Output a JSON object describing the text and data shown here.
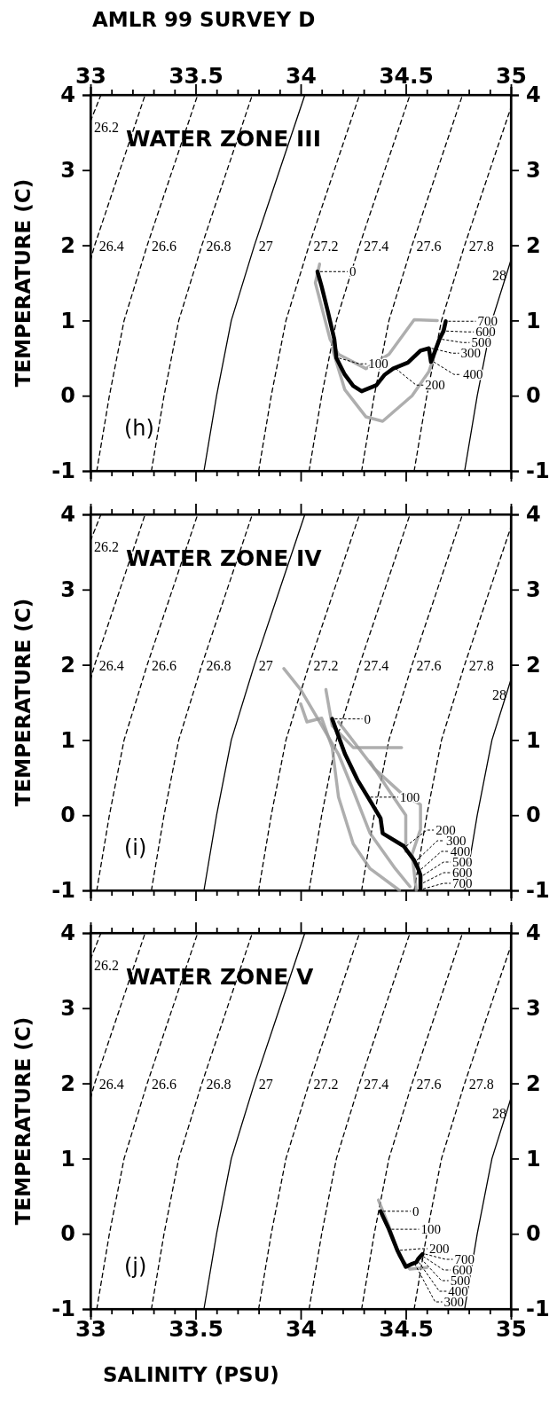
{
  "chart_data": [
    {
      "type": "line",
      "title": "AMLR 99  SURVEY D",
      "subtitle": "WATER ZONE III",
      "ylabel": "TEMPERATURE (C)",
      "tick_labels": "y",
      "xlim": [
        33,
        35
      ],
      "xticks": [
        33,
        {
          "value": 33.1,
          "label": null
        },
        {
          "value": 33.2,
          "label": null
        },
        {
          "value": 33.3,
          "label": null
        },
        {
          "value": 33.4,
          "label": null
        },
        33.5,
        {
          "value": 33.6,
          "label": null
        },
        {
          "value": 33.7,
          "label": null
        },
        {
          "value": 33.8,
          "label": null
        },
        {
          "value": 33.9,
          "label": null
        },
        34,
        {
          "value": 34.1,
          "label": null
        },
        {
          "value": 34.2,
          "label": null
        },
        {
          "value": 34.3,
          "label": null
        },
        {
          "value": 34.4,
          "label": null
        },
        34.5,
        {
          "value": 34.6,
          "label": null
        },
        {
          "value": 34.7,
          "label": null
        },
        {
          "value": 34.8,
          "label": null
        },
        {
          "value": 34.9,
          "label": null
        },
        35
      ],
      "x2lim": [
        33,
        35
      ],
      "x2ticks": [
        33,
        {
          "value": 33.1,
          "label": null
        },
        {
          "value": 33.2,
          "label": null
        },
        {
          "value": 33.3,
          "label": null
        },
        {
          "value": 33.4,
          "label": null
        },
        33.5,
        {
          "value": 33.6,
          "label": null
        },
        {
          "value": 33.7,
          "label": null
        },
        {
          "value": 33.8,
          "label": null
        },
        {
          "value": 33.9,
          "label": null
        },
        34,
        {
          "value": 34.1,
          "label": null
        },
        {
          "value": 34.2,
          "label": null
        },
        {
          "value": 34.3,
          "label": null
        },
        {
          "value": 34.4,
          "label": null
        },
        34.5,
        {
          "value": 34.6,
          "label": null
        },
        {
          "value": 34.7,
          "label": null
        },
        {
          "value": 34.8,
          "label": null
        },
        {
          "value": 34.9,
          "label": null
        },
        35
      ],
      "ylim": [
        -1,
        4
      ],
      "yticks": [
        -1,
        0,
        1,
        2,
        3,
        4
      ],
      "y2lim": [
        -1,
        4
      ],
      "y2ticks": [
        -1,
        0,
        1,
        2,
        3,
        4
      ],
      "series": [
        {
          "name": "26.2",
          "color": "#000000",
          "line_style": "dashed",
          "x": [
            33.0,
            33.05
          ],
          "values": [
            3.65,
            4
          ]
        },
        {
          "name": "26.4",
          "color": "#000000",
          "line_style": "dashed",
          "x": [
            33.0,
            33.02,
            33.14,
            33.26
          ],
          "values": [
            1.8,
            2,
            3,
            4
          ]
        },
        {
          "name": "26.6",
          "color": "#000000",
          "line_style": "dashed",
          "x": [
            33.03,
            33.09,
            33.16,
            33.27,
            33.39,
            33.51
          ],
          "values": [
            -1,
            0,
            1,
            2,
            3,
            4
          ]
        },
        {
          "name": "26.8",
          "color": "#000000",
          "line_style": "dashed",
          "x": [
            33.29,
            33.35,
            33.42,
            33.53,
            33.65,
            33.77
          ],
          "values": [
            -1,
            0,
            1,
            2,
            3,
            4
          ]
        },
        {
          "name": "27",
          "color": "#000000",
          "line_style": "solid",
          "x": [
            33.54,
            33.6,
            33.67,
            33.78,
            33.9,
            34.02
          ],
          "values": [
            -1,
            0,
            1,
            2,
            3,
            4
          ]
        },
        {
          "name": "27.2",
          "color": "#000000",
          "line_style": "dashed",
          "x": [
            33.8,
            33.86,
            33.93,
            34.04,
            34.16,
            34.28
          ],
          "values": [
            -1,
            0,
            1,
            2,
            3,
            4
          ]
        },
        {
          "name": "27.4",
          "color": "#000000",
          "line_style": "dashed",
          "x": [
            34.04,
            34.1,
            34.17,
            34.28,
            34.4,
            34.52
          ],
          "values": [
            -1,
            0,
            1,
            2,
            3,
            4
          ]
        },
        {
          "name": "27.6",
          "color": "#000000",
          "line_style": "dashed",
          "x": [
            34.29,
            34.35,
            34.42,
            34.53,
            34.65,
            34.77
          ],
          "values": [
            -1,
            0,
            1,
            2,
            3,
            4
          ]
        },
        {
          "name": "27.8",
          "color": "#000000",
          "line_style": "dashed",
          "x": [
            34.54,
            34.6,
            34.67,
            34.78,
            34.9,
            35.0
          ],
          "values": [
            -1,
            0,
            1,
            2,
            3,
            3.83
          ]
        },
        {
          "name": "28",
          "color": "#000000",
          "line_style": "solid",
          "x": [
            34.78,
            34.84,
            34.91,
            35.0
          ],
          "values": [
            -1,
            0,
            1,
            1.8
          ]
        },
        {
          "color": "#9a9a9a",
          "x": [
            34.09,
            34.07,
            34.14,
            34.18,
            34.31,
            34.42,
            34.54,
            34.65
          ],
          "values": [
            1.75,
            1.5,
            0.75,
            0.55,
            0.36,
            0.55,
            1.01,
            1.0
          ]
        },
        {
          "color": "#9a9a9a",
          "x": [
            34.15,
            34.21,
            34.31,
            34.39,
            34.53,
            34.61,
            34.69
          ],
          "values": [
            0.63,
            0.08,
            -0.28,
            -0.34,
            0.0,
            0.32,
            0.99
          ]
        },
        {
          "color": "#000000",
          "x": [
            34.08,
            34.1,
            34.13,
            34.16,
            34.17,
            34.21,
            34.25,
            34.29,
            34.36,
            34.4,
            34.44,
            34.51,
            34.57,
            34.61,
            34.62,
            34.64,
            34.66,
            34.68,
            34.69
          ],
          "values": [
            1.65,
            1.45,
            1.11,
            0.75,
            0.5,
            0.28,
            0.13,
            0.06,
            0.14,
            0.28,
            0.36,
            0.44,
            0.6,
            0.63,
            0.45,
            0.6,
            0.75,
            0.86,
            0.99
          ]
        }
      ],
      "annotations": [
        "(h)",
        {
          "text": "0",
          "x": 34.08,
          "y": 1.65
        },
        {
          "text": "100",
          "x": 34.17,
          "y": 0.5
        },
        {
          "text": "200",
          "x": 34.44,
          "y": 0.36
        },
        {
          "text": "300",
          "x": 34.61,
          "y": 0.63
        },
        {
          "text": "400",
          "x": 34.62,
          "y": 0.45
        },
        {
          "text": "500",
          "x": 34.66,
          "y": 0.75
        },
        {
          "text": "600",
          "x": 34.68,
          "y": 0.86
        },
        {
          "text": "700",
          "x": 34.69,
          "y": 0.99
        }
      ]
    },
    {
      "type": "line",
      "subtitle": "WATER ZONE IV",
      "ylabel": "TEMPERATURE (C)",
      "tick_labels": "y",
      "xlim": [
        33,
        35
      ],
      "xticks": [
        33,
        {
          "value": 33.1,
          "label": null
        },
        {
          "value": 33.2,
          "label": null
        },
        {
          "value": 33.3,
          "label": null
        },
        {
          "value": 33.4,
          "label": null
        },
        33.5,
        {
          "value": 33.6,
          "label": null
        },
        {
          "value": 33.7,
          "label": null
        },
        {
          "value": 33.8,
          "label": null
        },
        {
          "value": 33.9,
          "label": null
        },
        34,
        {
          "value": 34.1,
          "label": null
        },
        {
          "value": 34.2,
          "label": null
        },
        {
          "value": 34.3,
          "label": null
        },
        {
          "value": 34.4,
          "label": null
        },
        34.5,
        {
          "value": 34.6,
          "label": null
        },
        {
          "value": 34.7,
          "label": null
        },
        {
          "value": 34.8,
          "label": null
        },
        {
          "value": 34.9,
          "label": null
        },
        35
      ],
      "ylim": [
        -1,
        4
      ],
      "yticks": [
        -1,
        0,
        1,
        2,
        3,
        4
      ],
      "y2lim": [
        -1,
        4
      ],
      "y2ticks": [
        -1,
        0,
        1,
        2,
        3,
        4
      ],
      "series": [
        {
          "name": "26.2",
          "color": "#000000",
          "line_style": "dashed",
          "x": [
            33.0,
            33.05
          ],
          "values": [
            3.65,
            4
          ]
        },
        {
          "name": "26.4",
          "color": "#000000",
          "line_style": "dashed",
          "x": [
            33.0,
            33.02,
            33.14,
            33.26
          ],
          "values": [
            1.8,
            2,
            3,
            4
          ]
        },
        {
          "name": "26.6",
          "color": "#000000",
          "line_style": "dashed",
          "x": [
            33.03,
            33.09,
            33.16,
            33.27,
            33.39,
            33.51
          ],
          "values": [
            -1,
            0,
            1,
            2,
            3,
            4
          ]
        },
        {
          "name": "26.8",
          "color": "#000000",
          "line_style": "dashed",
          "x": [
            33.29,
            33.35,
            33.42,
            33.53,
            33.65,
            33.77
          ],
          "values": [
            -1,
            0,
            1,
            2,
            3,
            4
          ]
        },
        {
          "name": "27",
          "color": "#000000",
          "line_style": "solid",
          "x": [
            33.54,
            33.6,
            33.67,
            33.78,
            33.9,
            34.02
          ],
          "values": [
            -1,
            0,
            1,
            2,
            3,
            4
          ]
        },
        {
          "name": "27.2",
          "color": "#000000",
          "line_style": "dashed",
          "x": [
            33.8,
            33.86,
            33.93,
            34.04,
            34.16,
            34.28
          ],
          "values": [
            -1,
            0,
            1,
            2,
            3,
            4
          ]
        },
        {
          "name": "27.4",
          "color": "#000000",
          "line_style": "dashed",
          "x": [
            34.04,
            34.1,
            34.17,
            34.28,
            34.4,
            34.52
          ],
          "values": [
            -1,
            0,
            1,
            2,
            3,
            4
          ]
        },
        {
          "name": "27.6",
          "color": "#000000",
          "line_style": "dashed",
          "x": [
            34.29,
            34.35,
            34.42,
            34.53,
            34.65,
            34.77
          ],
          "values": [
            -1,
            0,
            1,
            2,
            3,
            4
          ]
        },
        {
          "name": "27.8",
          "color": "#000000",
          "line_style": "dashed",
          "x": [
            34.54,
            34.6,
            34.67,
            34.78,
            34.9,
            35.0
          ],
          "values": [
            -1,
            0,
            1,
            2,
            3,
            3.83
          ]
        },
        {
          "name": "28",
          "color": "#000000",
          "line_style": "solid",
          "x": [
            34.78,
            34.84,
            34.91,
            35.0
          ],
          "values": [
            -1,
            0,
            1,
            1.8
          ]
        },
        {
          "color": "#9a9a9a",
          "x": [
            33.92,
            34.0,
            34.08,
            34.18,
            34.25,
            34.33,
            34.45,
            34.52
          ],
          "values": [
            1.95,
            1.67,
            1.29,
            0.81,
            0.33,
            -0.24,
            -0.71,
            -0.95
          ]
        },
        {
          "color": "#9a9a9a",
          "x": [
            34.0,
            34.03,
            34.1,
            34.15,
            34.18,
            34.25,
            34.33,
            34.47
          ],
          "values": [
            1.48,
            1.24,
            1.29,
            0.9,
            0.24,
            -0.38,
            -0.71,
            -1.0
          ]
        },
        {
          "color": "#9a9a9a",
          "x": [
            34.12,
            34.15,
            34.25,
            34.48
          ],
          "values": [
            1.67,
            1.19,
            0.9,
            0.9
          ]
        },
        {
          "color": "#9a9a9a",
          "x": [
            34.18,
            34.35,
            34.48,
            34.57,
            34.57,
            34.53,
            34.55
          ],
          "values": [
            1.24,
            0.62,
            0.29,
            0.14,
            -0.19,
            -0.52,
            -1.0
          ]
        },
        {
          "color": "#9a9a9a",
          "x": [
            34.33,
            34.42,
            34.5,
            34.5
          ],
          "values": [
            0.71,
            0.33,
            0.0,
            -0.48
          ]
        },
        {
          "color": "#000000",
          "x": [
            34.15,
            34.21,
            34.27,
            34.32,
            34.38,
            34.39,
            34.49,
            34.54,
            34.56,
            34.57,
            34.57,
            34.57
          ],
          "values": [
            1.28,
            0.82,
            0.47,
            0.24,
            -0.04,
            -0.24,
            -0.41,
            -0.6,
            -0.72,
            -0.8,
            -0.9,
            -0.98
          ]
        }
      ],
      "annotations": [
        "(i)",
        {
          "text": "0",
          "x": 34.15,
          "y": 1.28
        },
        {
          "text": "100",
          "x": 34.32,
          "y": 0.24
        },
        {
          "text": "200",
          "x": 34.49,
          "y": -0.41
        },
        {
          "text": "300",
          "x": 34.54,
          "y": -0.6
        },
        {
          "text": "400",
          "x": 34.56,
          "y": -0.72
        },
        {
          "text": "500",
          "x": 34.57,
          "y": -0.8
        },
        {
          "text": "600",
          "x": 34.57,
          "y": -0.9
        },
        {
          "text": "700",
          "x": 34.57,
          "y": -0.98
        }
      ]
    },
    {
      "type": "line",
      "subtitle": "WATER ZONE V",
      "xlabel": "SALINITY (PSU)",
      "ylabel": "TEMPERATURE (C)",
      "xlim": [
        33,
        35
      ],
      "xticks": [
        33,
        {
          "value": 33.1,
          "label": null
        },
        {
          "value": 33.2,
          "label": null
        },
        {
          "value": 33.3,
          "label": null
        },
        {
          "value": 33.4,
          "label": null
        },
        33.5,
        {
          "value": 33.6,
          "label": null
        },
        {
          "value": 33.7,
          "label": null
        },
        {
          "value": 33.8,
          "label": null
        },
        {
          "value": 33.9,
          "label": null
        },
        34,
        {
          "value": 34.1,
          "label": null
        },
        {
          "value": 34.2,
          "label": null
        },
        {
          "value": 34.3,
          "label": null
        },
        {
          "value": 34.4,
          "label": null
        },
        34.5,
        {
          "value": 34.6,
          "label": null
        },
        {
          "value": 34.7,
          "label": null
        },
        {
          "value": 34.8,
          "label": null
        },
        {
          "value": 34.9,
          "label": null
        },
        35
      ],
      "ylim": [
        -1,
        4
      ],
      "yticks": [
        -1,
        0,
        1,
        2,
        3,
        4
      ],
      "y2lim": [
        -1,
        4
      ],
      "y2ticks": [
        -1,
        0,
        1,
        2,
        3,
        4
      ],
      "series": [
        {
          "name": "26.2",
          "color": "#000000",
          "line_style": "dashed",
          "x": [
            33.0,
            33.05
          ],
          "values": [
            3.65,
            4
          ]
        },
        {
          "name": "26.4",
          "color": "#000000",
          "line_style": "dashed",
          "x": [
            33.0,
            33.02,
            33.14,
            33.26
          ],
          "values": [
            1.8,
            2,
            3,
            4
          ]
        },
        {
          "name": "26.6",
          "color": "#000000",
          "line_style": "dashed",
          "x": [
            33.03,
            33.09,
            33.16,
            33.27,
            33.39,
            33.51
          ],
          "values": [
            -1,
            0,
            1,
            2,
            3,
            4
          ]
        },
        {
          "name": "26.8",
          "color": "#000000",
          "line_style": "dashed",
          "x": [
            33.29,
            33.35,
            33.42,
            33.53,
            33.65,
            33.77
          ],
          "values": [
            -1,
            0,
            1,
            2,
            3,
            4
          ]
        },
        {
          "name": "27",
          "color": "#000000",
          "line_style": "solid",
          "x": [
            33.54,
            33.6,
            33.67,
            33.78,
            33.9,
            34.02
          ],
          "values": [
            -1,
            0,
            1,
            2,
            3,
            4
          ]
        },
        {
          "name": "27.2",
          "color": "#000000",
          "line_style": "dashed",
          "x": [
            33.8,
            33.86,
            33.93,
            34.04,
            34.16,
            34.28
          ],
          "values": [
            -1,
            0,
            1,
            2,
            3,
            4
          ]
        },
        {
          "name": "27.4",
          "color": "#000000",
          "line_style": "dashed",
          "x": [
            34.04,
            34.1,
            34.17,
            34.28,
            34.4,
            34.52
          ],
          "values": [
            -1,
            0,
            1,
            2,
            3,
            4
          ]
        },
        {
          "name": "27.6",
          "color": "#000000",
          "line_style": "dashed",
          "x": [
            34.29,
            34.35,
            34.42,
            34.53,
            34.65,
            34.77
          ],
          "values": [
            -1,
            0,
            1,
            2,
            3,
            4
          ]
        },
        {
          "name": "27.8",
          "color": "#000000",
          "line_style": "dashed",
          "x": [
            34.54,
            34.6,
            34.67,
            34.78,
            34.9,
            35.0
          ],
          "values": [
            -1,
            0,
            1,
            2,
            3,
            3.83
          ]
        },
        {
          "name": "28",
          "color": "#000000",
          "line_style": "solid",
          "x": [
            34.78,
            34.84,
            34.91,
            35.0
          ],
          "values": [
            -1,
            0,
            1,
            1.8
          ]
        },
        {
          "color": "#9a9a9a",
          "x": [
            34.37,
            34.42,
            34.47,
            34.52,
            34.6
          ],
          "values": [
            0.45,
            0.1,
            -0.3,
            -0.47,
            -0.45
          ]
        },
        {
          "color": "#000000",
          "x": [
            34.38,
            34.42,
            34.46,
            34.5,
            34.53,
            34.55,
            34.56,
            34.57,
            34.58
          ],
          "values": [
            0.3,
            0.06,
            -0.22,
            -0.44,
            -0.4,
            -0.38,
            -0.33,
            -0.3,
            -0.27
          ]
        }
      ],
      "annotations": [
        "(j)",
        {
          "text": "0",
          "x": 34.38,
          "y": 0.3
        },
        {
          "text": "100",
          "x": 34.42,
          "y": 0.06
        },
        {
          "text": "200",
          "x": 34.46,
          "y": -0.22
        },
        {
          "text": "300",
          "x": 34.53,
          "y": -0.4
        },
        {
          "text": "400",
          "x": 34.55,
          "y": -0.38
        },
        {
          "text": "500",
          "x": 34.56,
          "y": -0.33
        },
        {
          "text": "600",
          "x": 34.57,
          "y": -0.3
        },
        {
          "text": "700",
          "x": 34.58,
          "y": -0.27
        }
      ]
    }
  ]
}
